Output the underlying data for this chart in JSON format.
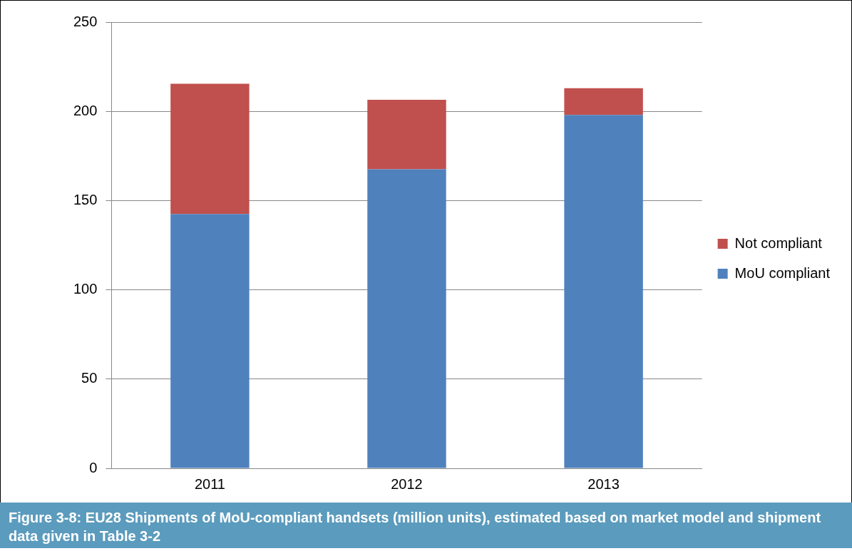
{
  "chart_data": {
    "type": "bar",
    "stacked": true,
    "categories": [
      "2011",
      "2012",
      "2013"
    ],
    "series": [
      {
        "name": "MoU compliant",
        "color": "#4f81bd",
        "values": [
          142.5,
          167.5,
          198
        ]
      },
      {
        "name": "Not compliant",
        "color": "#c0504d",
        "values": [
          73,
          39,
          15
        ]
      }
    ],
    "ylim": [
      0,
      250
    ],
    "yticks": [
      0,
      50,
      100,
      150,
      200,
      250
    ],
    "grid": "y",
    "legend": "right",
    "annotations": [
      "Figure 3-8: EU28 Shipments of MoU-compliant handsets (million units), estimated based on market model and shipment data given in Table 3-2"
    ]
  }
}
